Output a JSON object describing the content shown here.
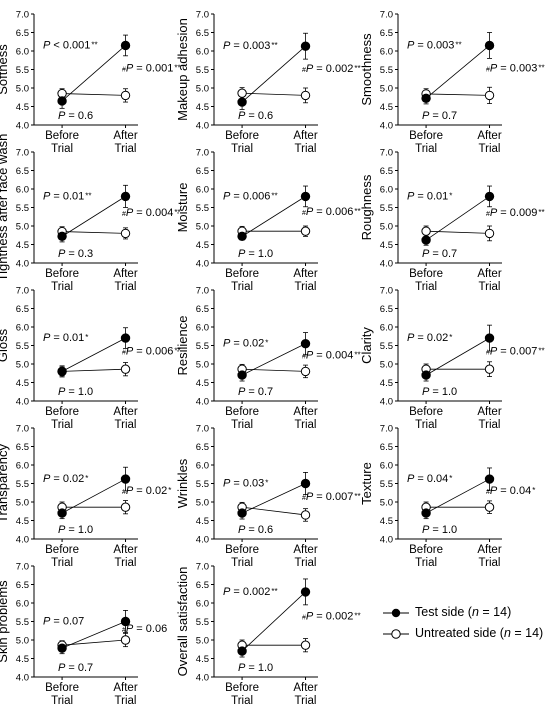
{
  "chart_data": [
    {
      "type": "line",
      "ylabel": "Softness",
      "ylim": [
        4.0,
        7.0
      ],
      "yticks": [
        "4.0",
        "4.5",
        "5.0",
        "5.5",
        "6.0",
        "6.5",
        "7.0"
      ],
      "categories": [
        "Before\nTrial",
        "After\nTrial"
      ],
      "series": [
        {
          "name": "Test side (n = 14)",
          "values": [
            4.65,
            6.15
          ],
          "err": [
            0.2,
            0.28
          ]
        },
        {
          "name": "Untreated side (n = 14)",
          "values": [
            4.85,
            4.8
          ],
          "err": [
            0.13,
            0.18
          ]
        }
      ],
      "annotations": {
        "test_p": "P < 0.001",
        "test_sig": "**",
        "untreated_p": "P = 0.6",
        "between_p": "P = 0.001",
        "between_sig": "**",
        "between_mark": "#"
      }
    },
    {
      "type": "line",
      "ylabel": "Makeup adhesion",
      "ylim": [
        4.0,
        7.0
      ],
      "yticks": [
        "4.0",
        "4.5",
        "5.0",
        "5.5",
        "6.0",
        "6.5",
        "7.0"
      ],
      "categories": [
        "Before\nTrial",
        "After\nTrial"
      ],
      "series": [
        {
          "name": "Test side (n = 14)",
          "values": [
            4.62,
            6.13
          ],
          "err": [
            0.2,
            0.35
          ]
        },
        {
          "name": "Untreated side (n = 14)",
          "values": [
            4.86,
            4.8
          ],
          "err": [
            0.15,
            0.2
          ]
        }
      ],
      "annotations": {
        "test_p": "P = 0.003",
        "test_sig": "**",
        "untreated_p": "P = 0.6",
        "between_p": "P = 0.002",
        "between_sig": "**",
        "between_mark": "#"
      }
    },
    {
      "type": "line",
      "ylabel": "Smoothness",
      "ylim": [
        4.0,
        7.0
      ],
      "yticks": [
        "4.0",
        "4.5",
        "5.0",
        "5.5",
        "6.0",
        "6.5",
        "7.0"
      ],
      "categories": [
        "Before\nTrial",
        "After\nTrial"
      ],
      "series": [
        {
          "name": "Test side (n = 14)",
          "values": [
            4.72,
            6.15
          ],
          "err": [
            0.15,
            0.35
          ]
        },
        {
          "name": "Untreated side (n = 14)",
          "values": [
            4.84,
            4.8
          ],
          "err": [
            0.14,
            0.22
          ]
        }
      ],
      "annotations": {
        "test_p": "P = 0.003",
        "test_sig": "**",
        "untreated_p": "P = 0.7",
        "between_p": "P = 0.003",
        "between_sig": "**",
        "between_mark": "#"
      }
    },
    {
      "type": "line",
      "ylabel": "Tightness after face wash",
      "ylim": [
        4.0,
        7.0
      ],
      "yticks": [
        "4.0",
        "4.5",
        "5.0",
        "5.5",
        "6.0",
        "6.5",
        "7.0"
      ],
      "categories": [
        "Before\nTrial",
        "After\nTrial"
      ],
      "series": [
        {
          "name": "Test side (n = 14)",
          "values": [
            4.72,
            5.8
          ],
          "err": [
            0.15,
            0.3
          ]
        },
        {
          "name": "Untreated side (n = 14)",
          "values": [
            4.85,
            4.8
          ],
          "err": [
            0.13,
            0.15
          ]
        }
      ],
      "annotations": {
        "test_p": "P = 0.01",
        "test_sig": "**",
        "untreated_p": "P = 0.3",
        "between_p": "P = 0.004",
        "between_sig": "**",
        "between_mark": "#"
      }
    },
    {
      "type": "line",
      "ylabel": "Moisture",
      "ylim": [
        4.0,
        7.0
      ],
      "yticks": [
        "4.0",
        "4.5",
        "5.0",
        "5.5",
        "6.0",
        "6.5",
        "7.0"
      ],
      "categories": [
        "Before\nTrial",
        "After\nTrial"
      ],
      "series": [
        {
          "name": "Test side (n = 14)",
          "values": [
            4.72,
            5.8
          ],
          "err": [
            0.1,
            0.28
          ]
        },
        {
          "name": "Untreated side (n = 14)",
          "values": [
            4.86,
            4.86
          ],
          "err": [
            0.13,
            0.14
          ]
        }
      ],
      "annotations": {
        "test_p": "P = 0.006",
        "test_sig": "**",
        "untreated_p": "P = 1.0",
        "between_p": "P = 0.006",
        "between_sig": "**",
        "between_mark": "#"
      }
    },
    {
      "type": "line",
      "ylabel": "Roughness",
      "ylim": [
        4.0,
        7.0
      ],
      "yticks": [
        "4.0",
        "4.5",
        "5.0",
        "5.5",
        "6.0",
        "6.5",
        "7.0"
      ],
      "categories": [
        "Before\nTrial",
        "After\nTrial"
      ],
      "series": [
        {
          "name": "Test side (n = 14)",
          "values": [
            4.62,
            5.8
          ],
          "err": [
            0.14,
            0.28
          ]
        },
        {
          "name": "Untreated side (n = 14)",
          "values": [
            4.86,
            4.8
          ],
          "err": [
            0.14,
            0.2
          ]
        }
      ],
      "annotations": {
        "test_p": "P = 0.01",
        "test_sig": "*",
        "untreated_p": "P = 0.7",
        "between_p": "P = 0.009",
        "between_sig": "**",
        "between_mark": "#"
      }
    },
    {
      "type": "line",
      "ylabel": "Gloss",
      "ylim": [
        4.0,
        7.0
      ],
      "yticks": [
        "4.0",
        "4.5",
        "5.0",
        "5.5",
        "6.0",
        "6.5",
        "7.0"
      ],
      "categories": [
        "Before\nTrial",
        "After\nTrial"
      ],
      "series": [
        {
          "name": "Test side (n = 14)",
          "values": [
            4.8,
            5.7
          ],
          "err": [
            0.15,
            0.28
          ]
        },
        {
          "name": "Untreated side (n = 14)",
          "values": [
            4.8,
            4.86
          ],
          "err": [
            0.12,
            0.18
          ]
        }
      ],
      "annotations": {
        "test_p": "P = 0.01",
        "test_sig": "*",
        "untreated_p": "P = 1.0",
        "between_p": "P = 0.006",
        "between_sig": "**",
        "between_mark": "#"
      }
    },
    {
      "type": "line",
      "ylabel": "Resilience",
      "ylim": [
        4.0,
        7.0
      ],
      "yticks": [
        "4.0",
        "4.5",
        "5.0",
        "5.5",
        "6.0",
        "6.5",
        "7.0"
      ],
      "categories": [
        "Before\nTrial",
        "After\nTrial"
      ],
      "series": [
        {
          "name": "Test side (n = 14)",
          "values": [
            4.7,
            5.55
          ],
          "err": [
            0.16,
            0.3
          ]
        },
        {
          "name": "Untreated side (n = 14)",
          "values": [
            4.86,
            4.8
          ],
          "err": [
            0.13,
            0.17
          ]
        }
      ],
      "annotations": {
        "test_p": "P = 0.02",
        "test_sig": "*",
        "untreated_p": "P = 0.7",
        "between_p": "P = 0.004",
        "between_sig": "**",
        "between_mark": "#"
      }
    },
    {
      "type": "line",
      "ylabel": "Clarity",
      "ylim": [
        4.0,
        7.0
      ],
      "yticks": [
        "4.0",
        "4.5",
        "5.0",
        "5.5",
        "6.0",
        "6.5",
        "7.0"
      ],
      "categories": [
        "Before\nTrial",
        "After\nTrial"
      ],
      "series": [
        {
          "name": "Test side (n = 14)",
          "values": [
            4.7,
            5.7
          ],
          "err": [
            0.16,
            0.35
          ]
        },
        {
          "name": "Untreated side (n = 14)",
          "values": [
            4.86,
            4.86
          ],
          "err": [
            0.14,
            0.2
          ]
        }
      ],
      "annotations": {
        "test_p": "P = 0.02",
        "test_sig": "*",
        "untreated_p": "P = 1.0",
        "between_p": "P = 0.007",
        "between_sig": "**",
        "between_mark": "#"
      }
    },
    {
      "type": "line",
      "ylabel": "Transparency",
      "ylim": [
        4.0,
        7.0
      ],
      "yticks": [
        "4.0",
        "4.5",
        "5.0",
        "5.5",
        "6.0",
        "6.5",
        "7.0"
      ],
      "categories": [
        "Before\nTrial",
        "After\nTrial"
      ],
      "series": [
        {
          "name": "Test side (n = 14)",
          "values": [
            4.7,
            5.62
          ],
          "err": [
            0.15,
            0.32
          ]
        },
        {
          "name": "Untreated side (n = 14)",
          "values": [
            4.86,
            4.86
          ],
          "err": [
            0.14,
            0.18
          ]
        }
      ],
      "annotations": {
        "test_p": "P = 0.02",
        "test_sig": "*",
        "untreated_p": "P = 1.0",
        "between_p": "P = 0.02",
        "between_sig": "*",
        "between_mark": "#"
      }
    },
    {
      "type": "line",
      "ylabel": "Wrinkles",
      "ylim": [
        4.0,
        7.0
      ],
      "yticks": [
        "4.0",
        "4.5",
        "5.0",
        "5.5",
        "6.0",
        "6.5",
        "7.0"
      ],
      "categories": [
        "Before\nTrial",
        "After\nTrial"
      ],
      "series": [
        {
          "name": "Test side (n = 14)",
          "values": [
            4.7,
            5.5
          ],
          "err": [
            0.16,
            0.3
          ]
        },
        {
          "name": "Untreated side (n = 14)",
          "values": [
            4.86,
            4.65
          ],
          "err": [
            0.13,
            0.17
          ]
        }
      ],
      "annotations": {
        "test_p": "P = 0.03",
        "test_sig": "*",
        "untreated_p": "P = 0.6",
        "between_p": "P = 0.007",
        "between_sig": "**",
        "between_mark": "#"
      }
    },
    {
      "type": "line",
      "ylabel": "Texture",
      "ylim": [
        4.0,
        7.0
      ],
      "yticks": [
        "4.0",
        "4.5",
        "5.0",
        "5.5",
        "6.0",
        "6.5",
        "7.0"
      ],
      "categories": [
        "Before\nTrial",
        "After\nTrial"
      ],
      "series": [
        {
          "name": "Test side (n = 14)",
          "values": [
            4.7,
            5.62
          ],
          "err": [
            0.15,
            0.3
          ]
        },
        {
          "name": "Untreated side (n = 14)",
          "values": [
            4.86,
            4.86
          ],
          "err": [
            0.14,
            0.17
          ]
        }
      ],
      "annotations": {
        "test_p": "P = 0.04",
        "test_sig": "*",
        "untreated_p": "P = 1.0",
        "between_p": "P = 0.04",
        "between_sig": "*",
        "between_mark": "#"
      }
    },
    {
      "type": "line",
      "ylabel": "Skin problems",
      "ylim": [
        4.0,
        7.0
      ],
      "yticks": [
        "4.0",
        "4.5",
        "5.0",
        "5.5",
        "6.0",
        "6.5",
        "7.0"
      ],
      "categories": [
        "Before\nTrial",
        "After\nTrial"
      ],
      "series": [
        {
          "name": "Test side (n = 14)",
          "values": [
            4.78,
            5.5
          ],
          "err": [
            0.15,
            0.3
          ]
        },
        {
          "name": "Untreated side (n = 14)",
          "values": [
            4.86,
            5.0
          ],
          "err": [
            0.12,
            0.18
          ]
        }
      ],
      "annotations": {
        "test_p": "P = 0.07",
        "test_sig": "",
        "untreated_p": "P = 0.7",
        "between_p": "P = 0.06",
        "between_sig": "",
        "between_mark": "#"
      }
    },
    {
      "type": "line",
      "ylabel": "Overall satisfaction",
      "ylim": [
        4.0,
        7.0
      ],
      "yticks": [
        "4.0",
        "4.5",
        "5.0",
        "5.5",
        "6.0",
        "6.5",
        "7.0"
      ],
      "categories": [
        "Before\nTrial",
        "After\nTrial"
      ],
      "series": [
        {
          "name": "Test side (n = 14)",
          "values": [
            4.7,
            6.3
          ],
          "err": [
            0.16,
            0.35
          ]
        },
        {
          "name": "Untreated side (n = 14)",
          "values": [
            4.86,
            4.86
          ],
          "err": [
            0.14,
            0.18
          ]
        }
      ],
      "annotations": {
        "test_p": "P = 0.002",
        "test_sig": "**",
        "untreated_p": "P = 1.0",
        "between_p": "P = 0.002",
        "between_sig": "**",
        "between_mark": "#"
      }
    }
  ],
  "legend": {
    "test": {
      "label": "Test side (",
      "n": "n",
      "rest": " = 14)"
    },
    "untreated": {
      "label": "Untreated side (",
      "n": "n",
      "rest": " = 14)"
    }
  }
}
